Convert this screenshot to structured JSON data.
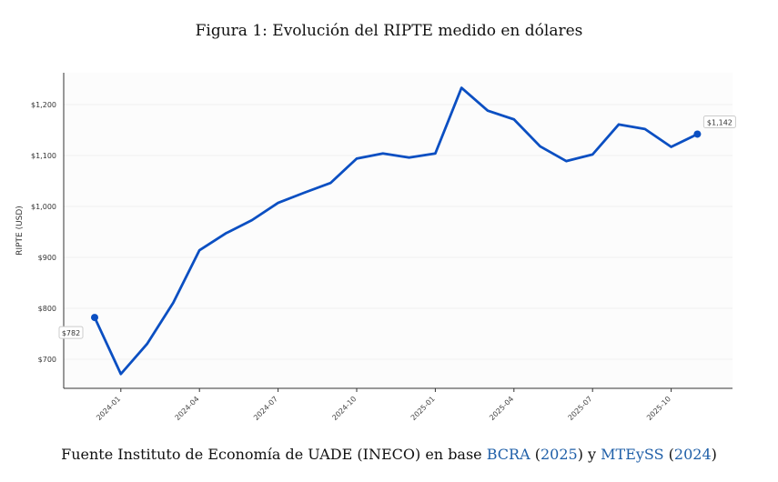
{
  "chart_data": {
    "type": "line",
    "title": "Figura 1: Evolución del RIPTE medido en dólares",
    "xlabel": "",
    "ylabel": "RIPTE (USD)",
    "x": [
      "2023-12",
      "2024-01",
      "2024-02",
      "2024-03",
      "2024-04",
      "2024-05",
      "2024-06",
      "2024-07",
      "2024-08",
      "2024-09",
      "2024-10",
      "2024-11",
      "2024-12",
      "2025-01",
      "2025-02",
      "2025-03",
      "2025-04",
      "2025-05",
      "2025-06",
      "2025-07",
      "2025-08",
      "2025-09",
      "2025-10",
      "2025-11"
    ],
    "values": [
      782,
      671,
      730,
      811,
      914,
      947,
      973,
      1007,
      1027,
      1046,
      1094,
      1104,
      1096,
      1104,
      1233,
      1188,
      1171,
      1118,
      1089,
      1102,
      1161,
      1152,
      1117,
      1142
    ],
    "ylim": [
      640,
      1260
    ],
    "yticks": [
      700,
      800,
      900,
      1000,
      1100,
      1200
    ],
    "ytick_labels": [
      "$700",
      "$800",
      "$900",
      "$1,000",
      "$1,100",
      "$1,200"
    ],
    "xtick_labels": [
      "2024-01",
      "2024-04",
      "2024-07",
      "2024-10",
      "2025-01",
      "2025-04",
      "2025-07",
      "2025-10"
    ],
    "annotations": [
      {
        "x": "2023-12",
        "label": "$782"
      },
      {
        "x": "2025-11",
        "label": "$1,142"
      }
    ],
    "grid": true,
    "line_color": "#0b4fc2"
  },
  "source": {
    "prefix": "Fuente Instituto de Economía de UADE (INECO) en base ",
    "ref1": "BCRA",
    "ref1_year": "2025",
    "mid": " y ",
    "ref2": "MTEySS",
    "ref2_year": "2024"
  }
}
